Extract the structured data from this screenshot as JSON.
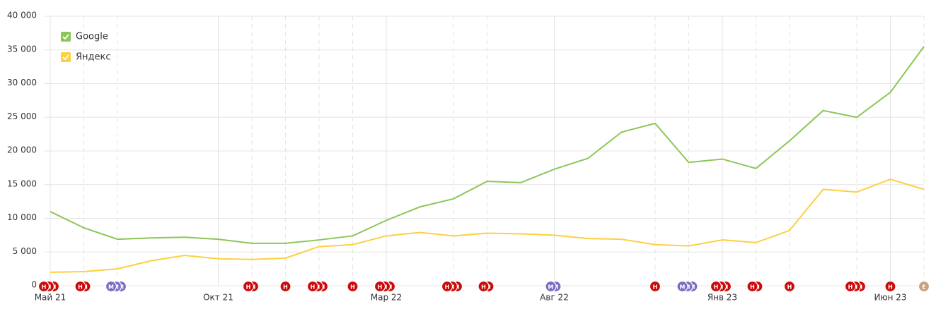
{
  "chart_data": {
    "type": "line",
    "categories": [
      "Май 21",
      null,
      null,
      null,
      null,
      "Окт 21",
      null,
      null,
      null,
      null,
      "Мар 22",
      null,
      null,
      null,
      null,
      "Авг 22",
      null,
      null,
      null,
      null,
      "Янв 23",
      null,
      null,
      null,
      null,
      "Июн 23",
      null
    ],
    "series": [
      {
        "name": "Google",
        "color": "#8cc657",
        "values": [
          11000,
          8600,
          6900,
          7100,
          7200,
          6900,
          6300,
          6300,
          6800,
          7400,
          9700,
          11700,
          12900,
          15500,
          15300,
          17300,
          18900,
          22800,
          24100,
          18300,
          18800,
          17400,
          21500,
          26000,
          25000,
          28700,
          35500
        ]
      },
      {
        "name": "Яндекс",
        "color": "#fcd040",
        "values": [
          2000,
          2100,
          2500,
          3700,
          4500,
          4000,
          3900,
          4100,
          5800,
          6100,
          7400,
          7900,
          7400,
          7800,
          7700,
          7500,
          7000,
          6900,
          6100,
          5900,
          6800,
          6400,
          8200,
          14300,
          13900,
          15800,
          14300
        ]
      }
    ],
    "ylim": [
      0,
      40000
    ],
    "yticks": [
      0,
      {
        "value": 5000,
        "label": "5 000"
      },
      {
        "value": 10000,
        "label": "10 000"
      },
      {
        "value": 15000,
        "label": "15 000"
      },
      {
        "value": 20000,
        "label": "20 000"
      },
      {
        "value": 25000,
        "label": "25 000"
      },
      {
        "value": 30000,
        "label": "30 000"
      },
      {
        "value": 35000,
        "label": "35 000"
      },
      {
        "value": 40000,
        "label": "40 000"
      }
    ],
    "grid": true,
    "legend": "top-left",
    "events": [
      [
        "Н",
        "Н",
        "Н"
      ],
      [
        "Н",
        "Н"
      ],
      [
        "М",
        "М",
        "М"
      ],
      [],
      [],
      [],
      [
        "Н",
        "Н"
      ],
      [
        "Н"
      ],
      [
        "Н",
        "Н",
        "Н"
      ],
      [
        "Н"
      ],
      [
        "Н",
        "Н",
        "Н"
      ],
      [],
      [
        "Н",
        "Н",
        "Н"
      ],
      [
        "Н",
        "Н"
      ],
      [],
      [
        "М",
        "М"
      ],
      [],
      [],
      [
        "Н"
      ],
      [
        "М",
        "М",
        "М"
      ],
      [
        "Н",
        "Н",
        "Н"
      ],
      [
        "Н",
        "Н"
      ],
      [
        "Н"
      ],
      [],
      [
        "Н",
        "Н",
        "Н"
      ],
      [
        "Н"
      ],
      [
        "Е"
      ]
    ],
    "event_colors": {
      "Н": "#cc0a0a",
      "М": "#7e6bc4",
      "Е": "#c9a07c"
    }
  }
}
